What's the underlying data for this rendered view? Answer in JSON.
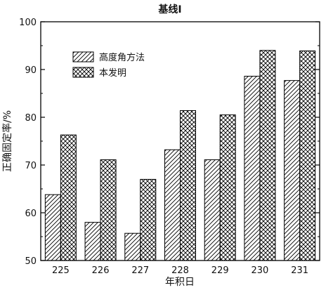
{
  "chart_data": {
    "type": "bar",
    "title": "基线I",
    "xlabel": "年积日",
    "ylabel": "正确固定率/%",
    "ylim": [
      50,
      100
    ],
    "yticks": [
      50,
      60,
      70,
      80,
      90,
      100
    ],
    "categories": [
      "225",
      "226",
      "227",
      "228",
      "229",
      "230",
      "231"
    ],
    "series": [
      {
        "name": "高度角方法",
        "pattern": "diagonal-hatch",
        "values": [
          63.8,
          58.0,
          55.7,
          73.2,
          71.1,
          88.6,
          87.7
        ]
      },
      {
        "name": "本发明",
        "pattern": "cross-hatch",
        "values": [
          76.3,
          71.1,
          67.0,
          81.4,
          80.5,
          94.0,
          93.9
        ]
      }
    ],
    "legend_position": "top-left",
    "grid": false,
    "colors": {
      "bar_stroke": "#000000",
      "hatch": "#000000",
      "background": "#ffffff"
    }
  }
}
